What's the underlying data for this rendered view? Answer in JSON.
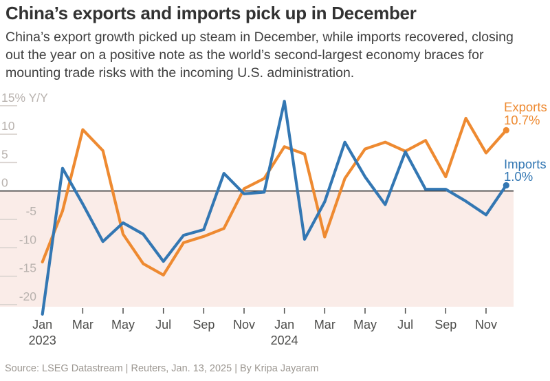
{
  "header": {
    "title": "China’s exports and imports pick up in December",
    "subtitle": "China’s export growth picked up steam in December, while imports recovered, closing out the year on a positive note as the world’s second-largest economy braces for mounting trade risks with the incoming U.S. administration."
  },
  "footer": {
    "source_line": "Source: LSEG Datastream  |  Reuters, Jan. 13, 2025  |  By Kripa Jayaram"
  },
  "chart_data": {
    "type": "line",
    "title": "China’s exports and imports pick up in December",
    "ylabel": "% Y/Y",
    "categories": [
      "Jan 2023",
      "Feb 2023",
      "Mar 2023",
      "Apr 2023",
      "May 2023",
      "Jun 2023",
      "Jul 2023",
      "Aug 2023",
      "Sep 2023",
      "Oct 2023",
      "Nov 2023",
      "Dec 2023",
      "Jan 2024",
      "Feb 2024",
      "Mar 2024",
      "Apr 2024",
      "May 2024",
      "Jun 2024",
      "Jul 2024",
      "Aug 2024",
      "Sep 2024",
      "Oct 2024",
      "Nov 2024",
      "Dec 2024"
    ],
    "series": [
      {
        "name": "Exports",
        "color": "#ee8a31",
        "end_label": "Exports",
        "end_value_label": "10.7%",
        "values": [
          -12.5,
          -3.5,
          10.8,
          7.1,
          -7.6,
          -12.8,
          -14.8,
          -9.1,
          -8.0,
          -6.6,
          0.4,
          2.2,
          7.8,
          6.5,
          -8.1,
          2.2,
          7.4,
          8.6,
          7.0,
          8.9,
          2.5,
          12.8,
          6.7,
          10.7
        ]
      },
      {
        "name": "Imports",
        "color": "#3377b3",
        "end_label": "Imports",
        "end_value_label": "1.0%",
        "values": [
          -21.7,
          4.0,
          -2.3,
          -8.9,
          -5.6,
          -7.6,
          -12.4,
          -7.8,
          -6.8,
          3.1,
          -0.5,
          -0.2,
          15.8,
          -8.5,
          -1.9,
          8.6,
          2.5,
          -2.4,
          6.9,
          0.3,
          0.3,
          -1.8,
          -4.2,
          1.0
        ]
      }
    ],
    "y_ticks": [
      {
        "value": 15,
        "label": "15% Y/Y"
      },
      {
        "value": 10,
        "label": "10"
      },
      {
        "value": 5,
        "label": "5"
      },
      {
        "value": 0,
        "label": "0"
      },
      {
        "value": -5,
        "label": "-5"
      },
      {
        "value": -10,
        "label": "-10"
      },
      {
        "value": -15,
        "label": "-15"
      },
      {
        "value": -20,
        "label": "-20"
      }
    ],
    "x_ticks": [
      {
        "index": 0,
        "label": "Jan",
        "year": "2023"
      },
      {
        "index": 2,
        "label": "Mar"
      },
      {
        "index": 4,
        "label": "May"
      },
      {
        "index": 6,
        "label": "Jul"
      },
      {
        "index": 8,
        "label": "Sep"
      },
      {
        "index": 10,
        "label": "Nov"
      },
      {
        "index": 12,
        "label": "Jan",
        "year": "2024"
      },
      {
        "index": 14,
        "label": "Mar"
      },
      {
        "index": 16,
        "label": "May"
      },
      {
        "index": 18,
        "label": "Jul"
      },
      {
        "index": 20,
        "label": "Sep"
      },
      {
        "index": 22,
        "label": "Nov"
      }
    ],
    "ylim": [
      -22,
      16.5
    ],
    "grid": "short-left-ticks-only",
    "legend_position": "line-end-right",
    "negative_area_color": "#faece8",
    "zero_line_color": "#3c3c3c",
    "axis_label_color": "#b8b2ae",
    "month_label_color": "#4c4c4a"
  }
}
